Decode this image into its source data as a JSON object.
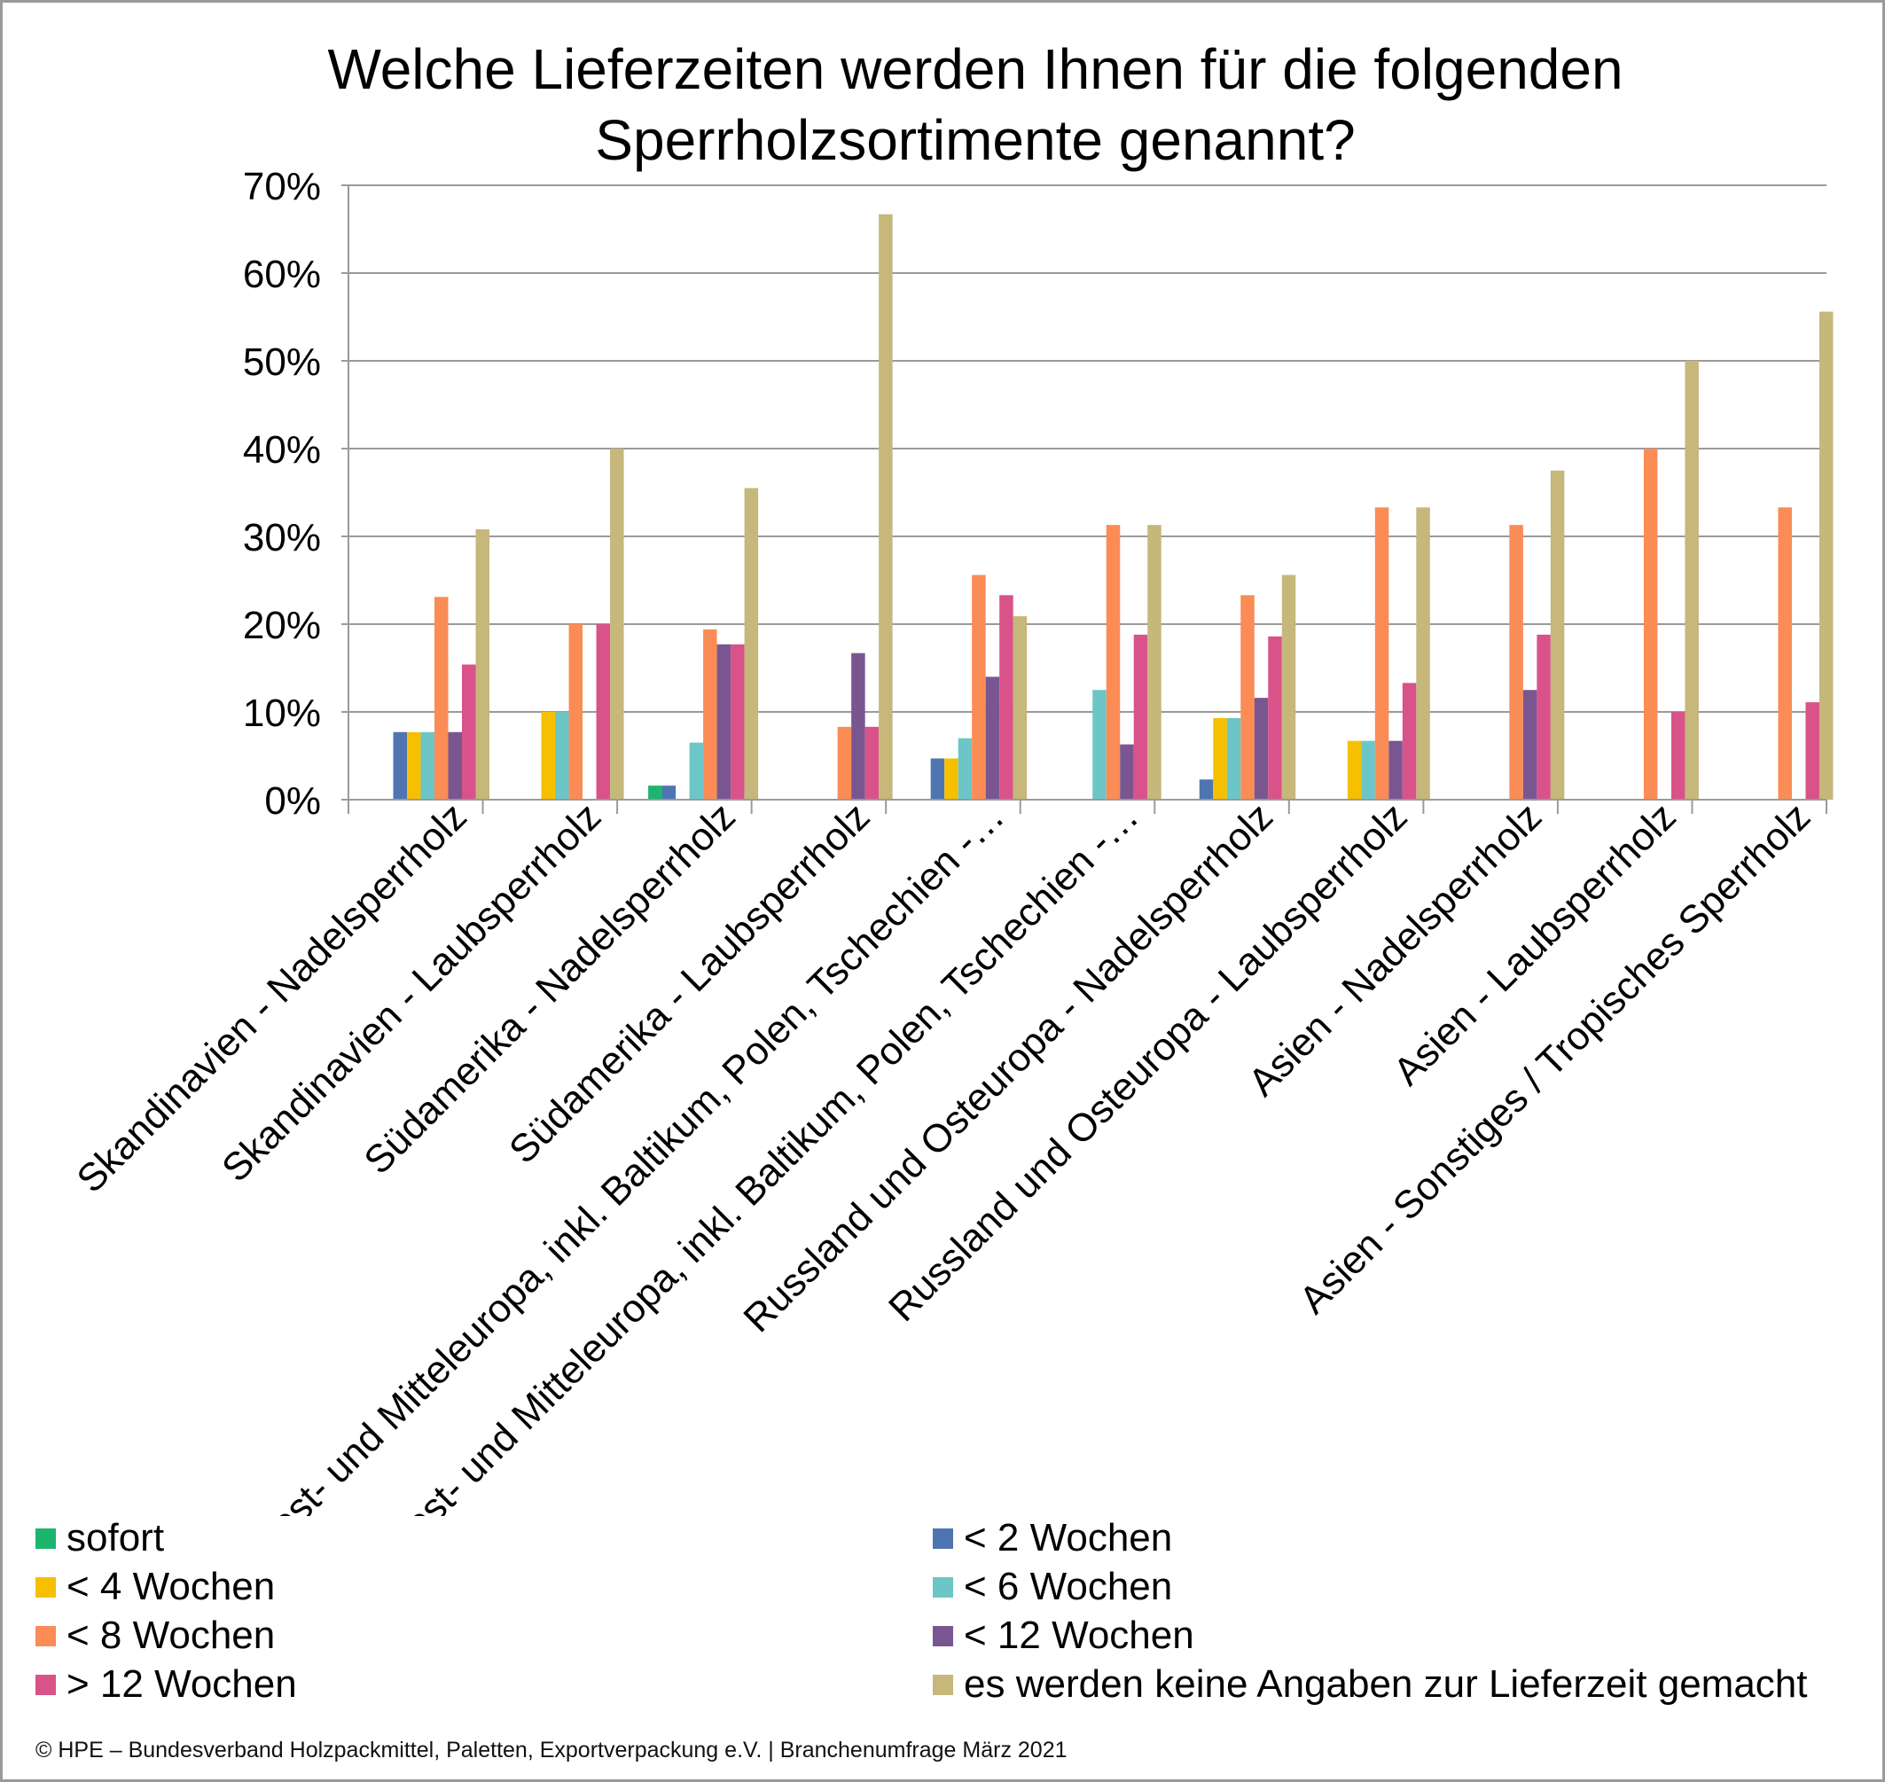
{
  "chart_data": {
    "type": "bar",
    "title": "Welche Lieferzeiten werden Ihnen für die folgenden Sperrholzsortimente genannt?",
    "ylim": [
      0,
      70
    ],
    "yticks": [
      "0%",
      "10%",
      "20%",
      "30%",
      "40%",
      "50%",
      "60%",
      "70%"
    ],
    "grid": true,
    "legend_position": "bottom",
    "categories": [
      "Skandinavien - Nadelsperrholz",
      "Skandinavien - Laubsperrholz",
      "Südamerika - Nadelsperrholz",
      "Südamerika - Laubsperrholz",
      "West- und Mitteleuropa, inkl. Baltikum, Polen, Tschechien -…",
      "West- und Mitteleuropa, inkl. Baltikum, Polen, Tschechien -…",
      "Russland und Osteuropa - Nadelsperrholz",
      "Russland und Osteuropa - Laubsperrholz",
      "Asien - Nadelsperrholz",
      "Asien - Laubsperrholz",
      "Asien - Sonstiges / Tropisches Sperrholz"
    ],
    "series": [
      {
        "name": "sofort",
        "color": "#1bb56e",
        "values": [
          0,
          0,
          1.6,
          0,
          0,
          0,
          0,
          0,
          0,
          0,
          0
        ]
      },
      {
        "name": "< 2 Wochen",
        "color": "#4f74b2",
        "values": [
          7.7,
          0,
          1.6,
          0,
          4.7,
          0,
          2.3,
          0,
          0,
          0,
          0
        ]
      },
      {
        "name": "< 4 Wochen",
        "color": "#f6c000",
        "values": [
          7.7,
          10,
          0,
          0,
          4.7,
          0,
          9.3,
          6.7,
          0,
          0,
          0
        ]
      },
      {
        "name": "< 6 Wochen",
        "color": "#6cc6c7",
        "values": [
          7.7,
          10,
          6.5,
          0,
          7.0,
          12.5,
          9.3,
          6.7,
          0,
          0,
          0
        ]
      },
      {
        "name": "< 8 Wochen",
        "color": "#fb8c55",
        "values": [
          23.1,
          20,
          19.4,
          8.3,
          25.6,
          31.3,
          23.3,
          33.3,
          31.3,
          40,
          33.3
        ]
      },
      {
        "name": "< 12 Wochen",
        "color": "#7a5690",
        "values": [
          7.7,
          0,
          17.7,
          16.7,
          14.0,
          6.3,
          11.6,
          6.7,
          12.5,
          0,
          0
        ]
      },
      {
        "name": "> 12 Wochen",
        "color": "#d9528a",
        "values": [
          15.4,
          20,
          17.7,
          8.3,
          23.3,
          18.8,
          18.6,
          13.3,
          18.8,
          10,
          11.1
        ]
      },
      {
        "name": "es werden keine Angaben zur Lieferzeit gemacht",
        "color": "#c6b77a",
        "values": [
          30.8,
          40,
          35.5,
          66.7,
          20.9,
          31.3,
          25.6,
          33.3,
          37.5,
          50,
          55.6
        ]
      }
    ]
  },
  "legend_order": [
    0,
    1,
    2,
    3,
    4,
    5,
    6,
    7
  ],
  "footer": "© HPE – Bundesverband Holzpackmittel, Paletten, Exportverpackung e.V.  | Branchenumfrage März 2021"
}
